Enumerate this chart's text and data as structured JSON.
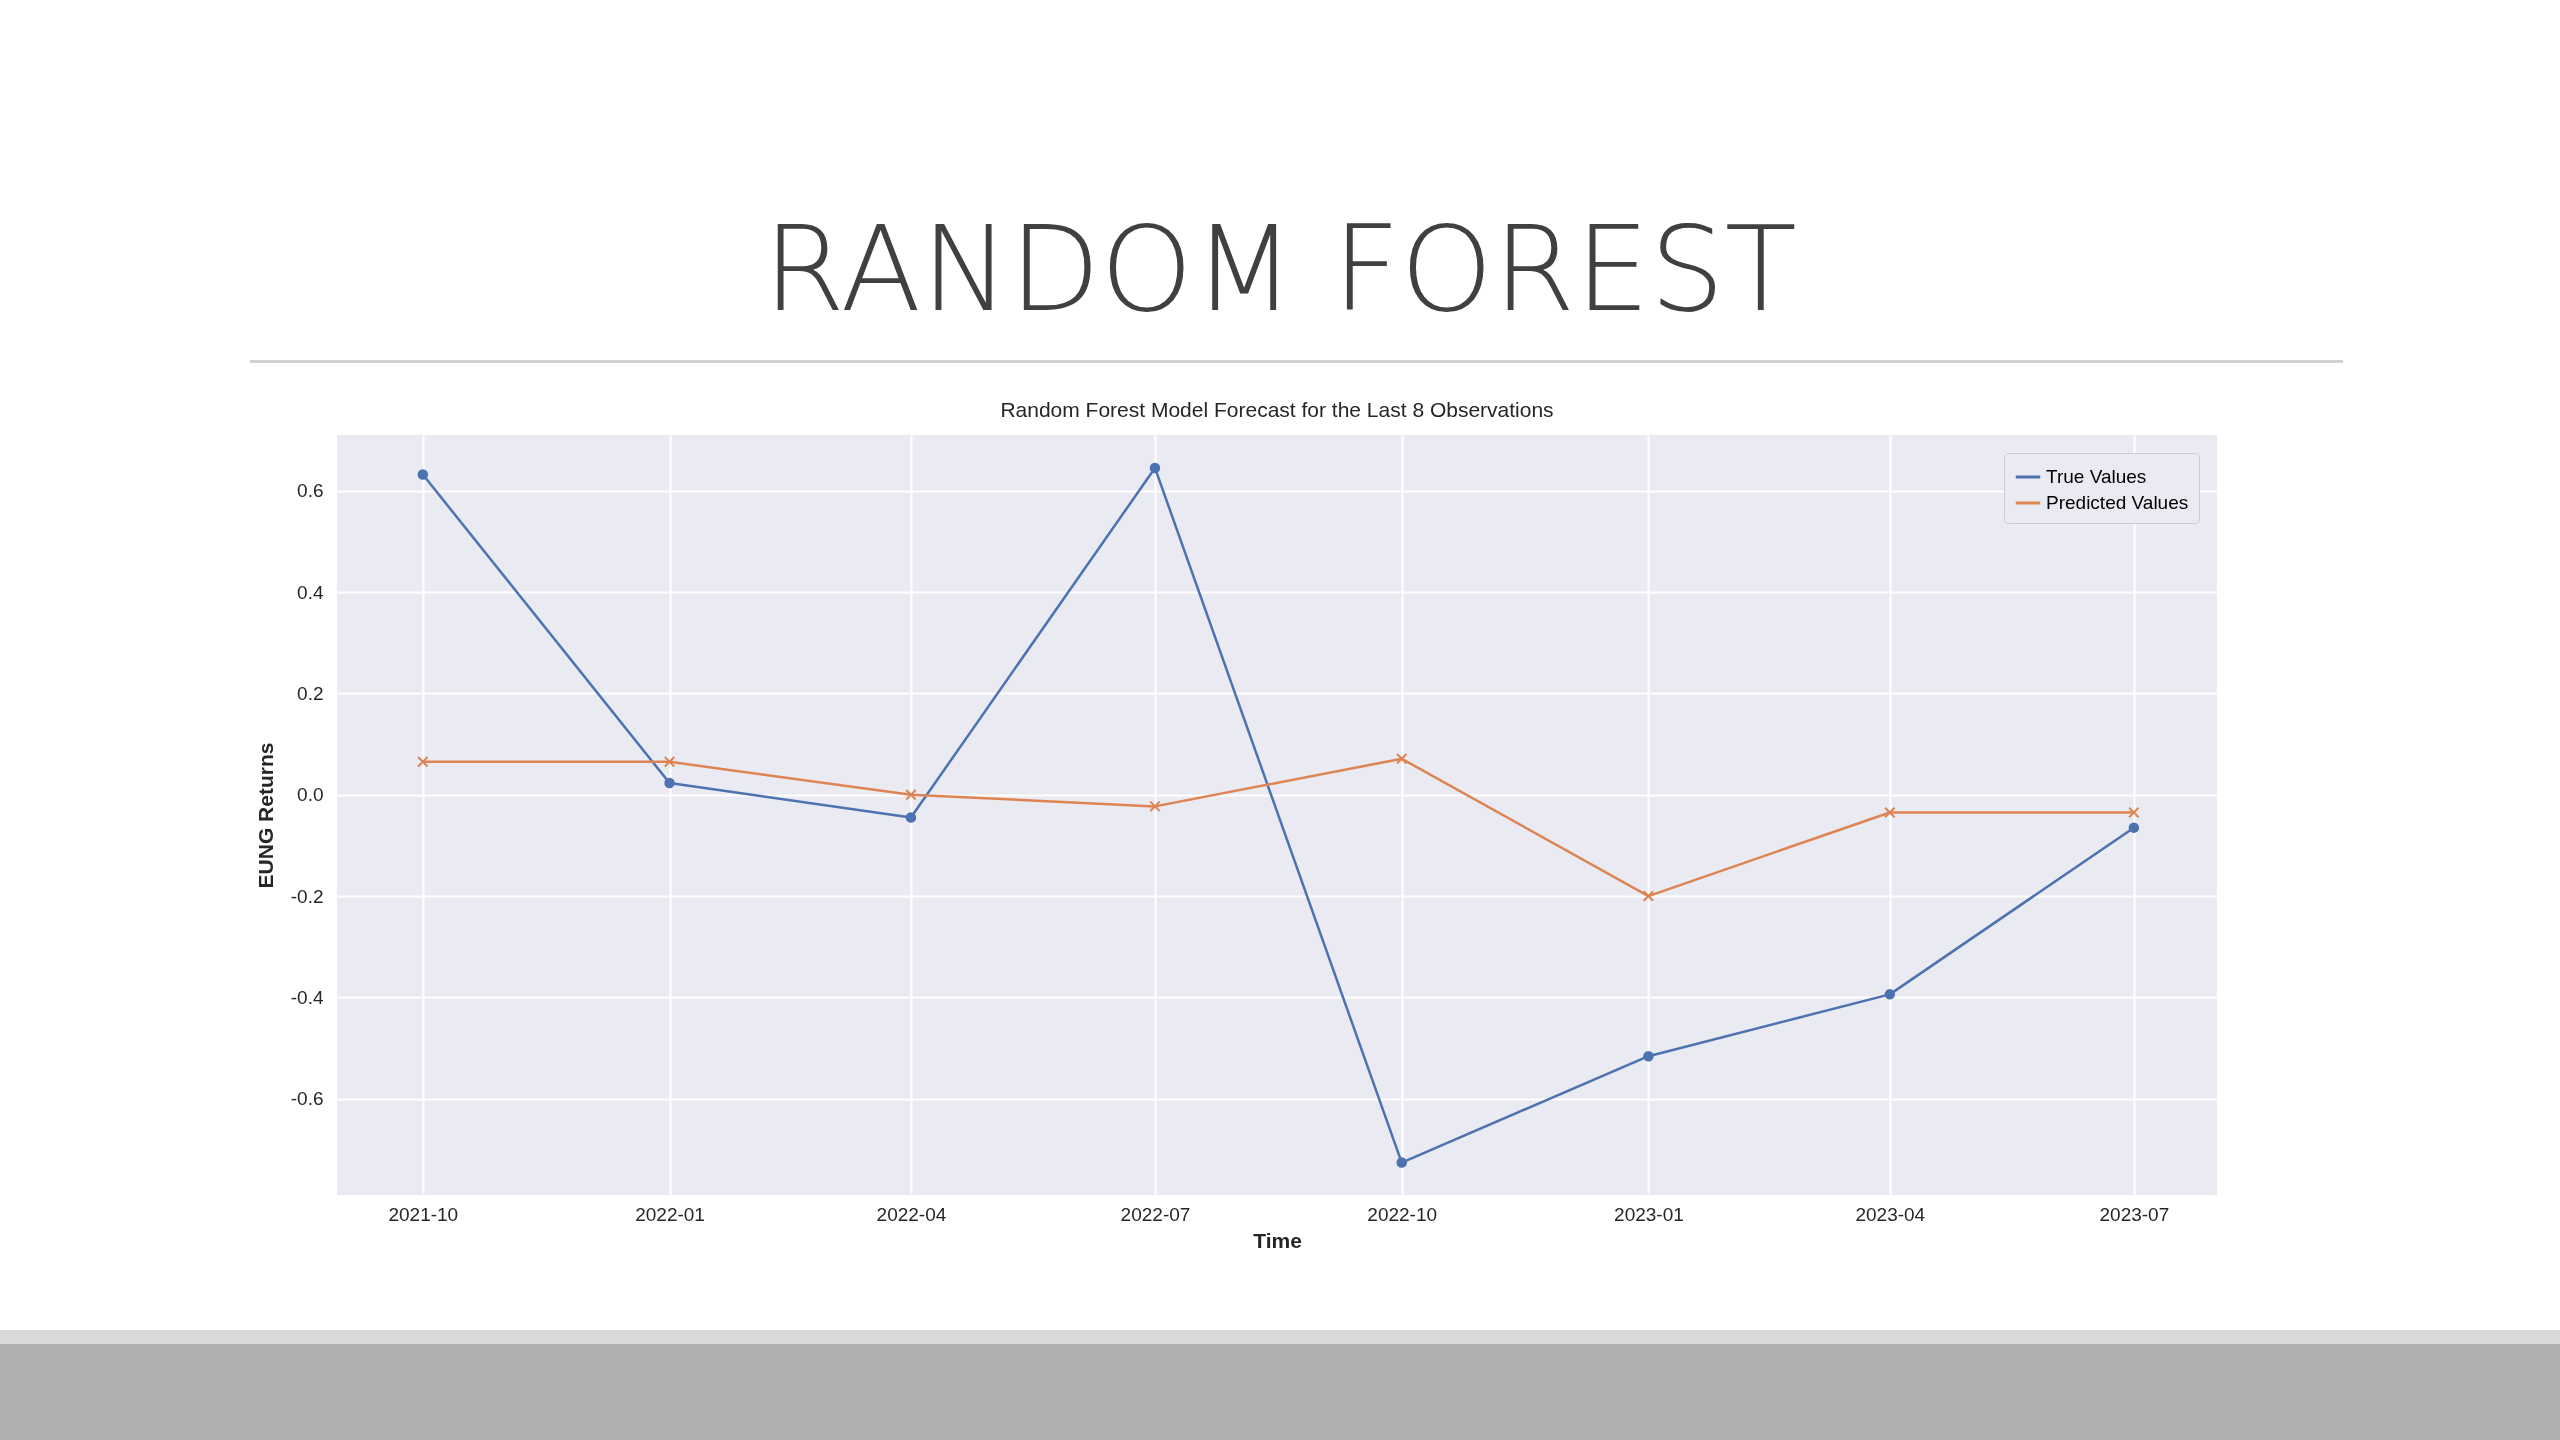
{
  "chart_data": {
    "type": "line",
    "title": "RANDOM FOREST",
    "subtitle": "Random Forest Model Forecast for the Last 8 Observations",
    "xlabel": "Time",
    "ylabel": "EUNG Returns",
    "x": [
      "2021-10",
      "2022-01",
      "2022-04",
      "2022-07",
      "2022-10",
      "2023-01",
      "2023-04",
      "2023-07"
    ],
    "series": [
      {
        "name": "True Values",
        "color": "#4c72b0",
        "marker": "circle",
        "values": [
          0.632,
          0.023,
          -0.045,
          0.645,
          -0.726,
          -0.516,
          -0.394,
          -0.065
        ]
      },
      {
        "name": "Predicted Values",
        "color": "#dd8452",
        "marker": "cross",
        "values": [
          0.065,
          0.065,
          0.0,
          -0.023,
          0.071,
          -0.2,
          -0.035,
          -0.035
        ]
      }
    ],
    "xlim": [
      "2021-08-30",
      "2023-08-01"
    ],
    "xticks": [
      {
        "value": "2021-10",
        "label": "2021-10"
      },
      {
        "value": "2022-01",
        "label": "2022-01"
      },
      {
        "value": "2022-04",
        "label": "2022-04"
      },
      {
        "value": "2022-07",
        "label": "2022-07"
      },
      {
        "value": "2022-10",
        "label": "2022-10"
      },
      {
        "value": "2023-01",
        "label": "2023-01"
      },
      {
        "value": "2023-04",
        "label": "2023-04"
      },
      {
        "value": "2023-07",
        "label": "2023-07"
      }
    ],
    "ylim": [
      -0.79,
      0.71
    ],
    "yticks": [
      -0.6,
      -0.4,
      -0.2,
      {
        "value": 0,
        "label": "0.0"
      },
      0.2,
      0.4,
      0.6
    ],
    "grid": true,
    "legend": "top right",
    "line_style": "solid"
  }
}
